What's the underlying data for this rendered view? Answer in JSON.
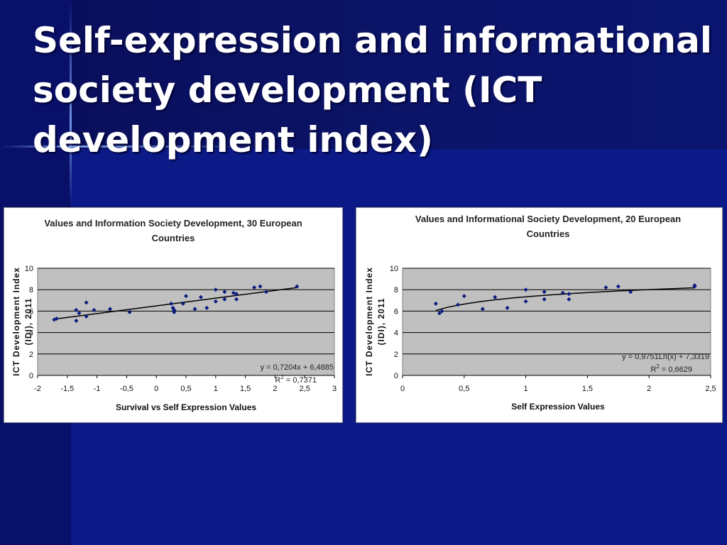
{
  "slide": {
    "title": "Self-expression and informational society development (ICT development index)"
  },
  "colors": {
    "background": "#0a1670",
    "title_text": "#ffffff",
    "plot_area": "#c0c0c0",
    "marker": "#0a1a80",
    "trendline": "#000000"
  },
  "chart_data": [
    {
      "type": "scatter",
      "title_lines": [
        "Values and Information Society Development, 30 European",
        "Countries"
      ],
      "xlabel": "Survival vs Self Expression Values",
      "ylabel_lines": [
        "ICT Development Index",
        "(IDI), 2011"
      ],
      "xlim": [
        -2,
        3
      ],
      "ylim": [
        0,
        10
      ],
      "xticks": [
        "-2",
        "-1,5",
        "-1",
        "-0,5",
        "0",
        "0,5",
        "1",
        "1,5",
        "2",
        "2,5",
        "3"
      ],
      "yticks": [
        "0",
        "2",
        "4",
        "6",
        "8",
        "10"
      ],
      "grid": true,
      "equation": "y = 0,7204x + 6,4885",
      "r2_label": "R",
      "r2_exp": "2",
      "r2_value": " = 0,7371",
      "trend": {
        "kind": "linear",
        "a": 0.7204,
        "b": 6.4885,
        "x_from": -1.72,
        "x_to": 2.38
      },
      "points": [
        [
          -1.72,
          5.2
        ],
        [
          -1.68,
          5.3
        ],
        [
          -1.35,
          6.1
        ],
        [
          -1.35,
          5.1
        ],
        [
          -1.3,
          5.8
        ],
        [
          -1.18,
          6.8
        ],
        [
          -1.18,
          5.5
        ],
        [
          -1.05,
          6.1
        ],
        [
          -0.78,
          6.2
        ],
        [
          -0.45,
          5.9
        ],
        [
          0.25,
          6.7
        ],
        [
          0.28,
          6.3
        ],
        [
          0.3,
          5.9
        ],
        [
          0.3,
          6.1
        ],
        [
          0.45,
          6.7
        ],
        [
          0.5,
          7.4
        ],
        [
          0.65,
          6.2
        ],
        [
          0.75,
          7.3
        ],
        [
          0.85,
          6.3
        ],
        [
          1.0,
          8.0
        ],
        [
          1.0,
          6.9
        ],
        [
          1.15,
          7.8
        ],
        [
          1.15,
          7.1
        ],
        [
          1.3,
          7.7
        ],
        [
          1.35,
          7.6
        ],
        [
          1.35,
          7.1
        ],
        [
          1.65,
          8.2
        ],
        [
          1.75,
          8.3
        ],
        [
          1.85,
          7.8
        ],
        [
          2.37,
          8.3
        ]
      ]
    },
    {
      "type": "scatter",
      "title_lines": [
        "Values and Informational Society Development, 20 European",
        "Countries"
      ],
      "xlabel": "Self Expression Values",
      "ylabel_lines": [
        "ICT Development Index",
        "(IDI), 2011"
      ],
      "xlim": [
        0,
        2.5
      ],
      "ylim": [
        0,
        10
      ],
      "xticks": [
        "0",
        "0,5",
        "1",
        "1,5",
        "2",
        "2,5"
      ],
      "yticks": [
        "0",
        "2",
        "4",
        "6",
        "8",
        "10"
      ],
      "grid": true,
      "equation": "y = 0,9751Ln(x) + 7,3319",
      "r2_label": "R",
      "r2_exp": "2",
      "r2_value": " = 0,6629",
      "trend": {
        "kind": "log",
        "a": 0.9751,
        "b": 7.3319,
        "x_from": 0.27,
        "x_to": 2.37
      },
      "points": [
        [
          0.27,
          6.7
        ],
        [
          0.3,
          5.8
        ],
        [
          0.32,
          6.0
        ],
        [
          0.45,
          6.6
        ],
        [
          0.5,
          7.4
        ],
        [
          0.65,
          6.2
        ],
        [
          0.75,
          7.3
        ],
        [
          0.85,
          6.3
        ],
        [
          1.0,
          8.0
        ],
        [
          1.0,
          6.9
        ],
        [
          1.15,
          7.8
        ],
        [
          1.15,
          7.1
        ],
        [
          1.3,
          7.7
        ],
        [
          1.35,
          7.6
        ],
        [
          1.35,
          7.1
        ],
        [
          1.65,
          8.2
        ],
        [
          1.75,
          8.3
        ],
        [
          1.85,
          7.8
        ],
        [
          2.37,
          8.3
        ],
        [
          2.37,
          8.4
        ]
      ]
    }
  ]
}
